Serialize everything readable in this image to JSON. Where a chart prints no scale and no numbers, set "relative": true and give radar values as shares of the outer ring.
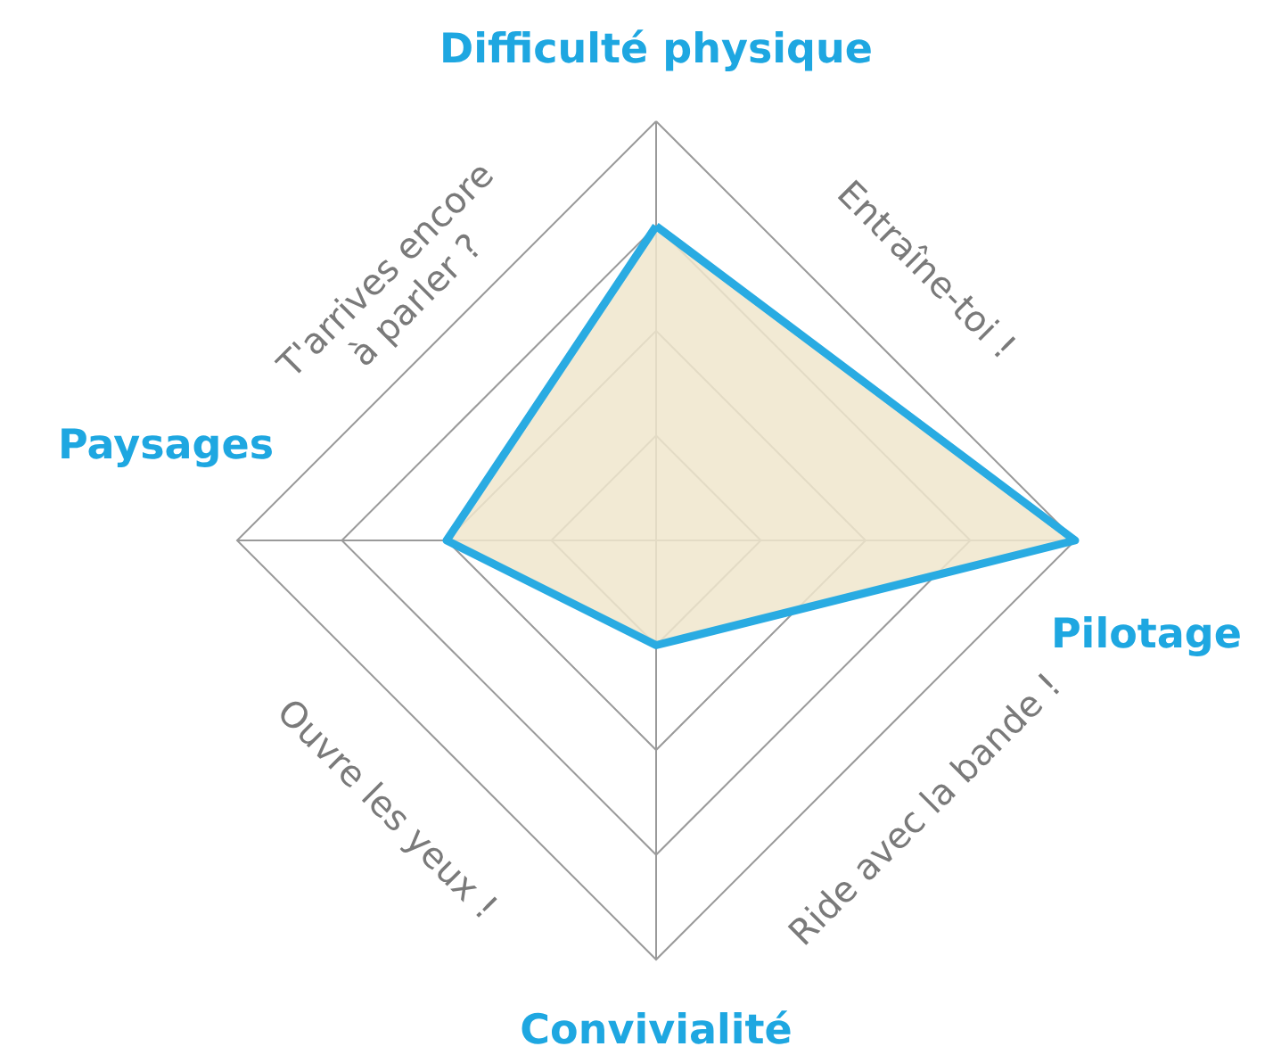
{
  "chart_data": {
    "type": "radar",
    "relative": true,
    "grid": true,
    "categories": [
      "Difficulté physique",
      "Pilotage",
      "Convivialité",
      "Paysages"
    ],
    "series": [
      {
        "color": "#29abe2",
        "values": [
          0.75,
          1,
          0.25,
          0.5
        ]
      }
    ],
    "annotations": [
      "Entraîne-toi !",
      "Ride avec la bande !",
      "Ouvre les yeux !",
      "T'arrives encore à parler ?"
    ]
  }
}
